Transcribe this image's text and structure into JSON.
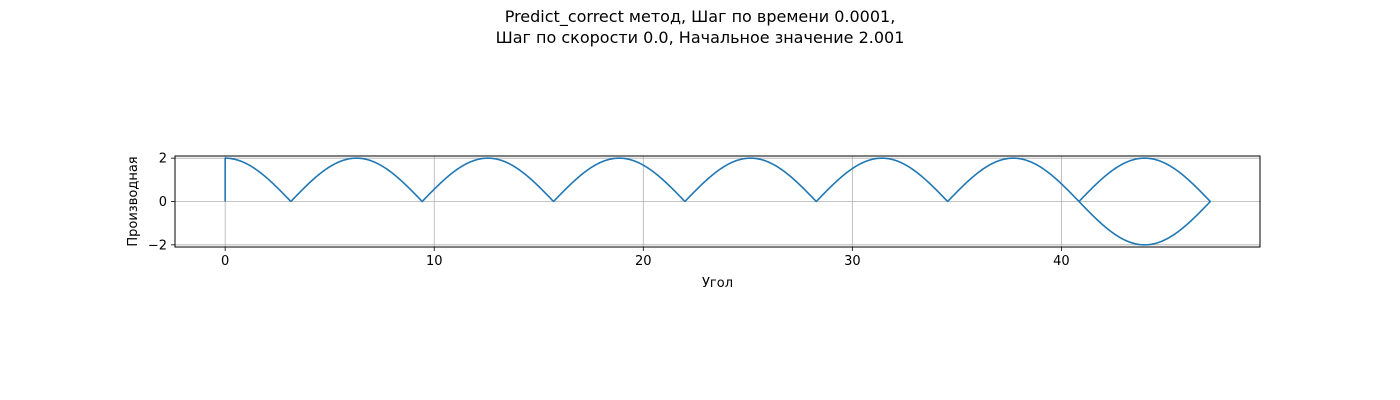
{
  "chart_data": {
    "type": "line",
    "title_line1": "Predict_correct метод, Шаг по времени 0.0001,",
    "title_line2": "Шаг по скорости 0.0, Начальное значение 2.001",
    "xlabel": "Угол",
    "ylabel": "Производная",
    "xlim": [
      -2.4,
      49.5
    ],
    "ylim": [
      -2.1,
      2.1
    ],
    "x_ticks": [
      0,
      10,
      20,
      30,
      40
    ],
    "x_tick_labels": [
      "0",
      "10",
      "20",
      "30",
      "40"
    ],
    "y_ticks": [
      -2,
      0,
      2
    ],
    "y_tick_labels": [
      "−2",
      "0",
      "2"
    ],
    "grid": true,
    "legend": null,
    "series": [
      {
        "color": "#1f77b4",
        "equation": "y = 2·|cos(x/2)| for x in [0, 47.12], then lower branch y = −2·|cos(x/2)| from 40.84 to 47.12",
        "x_max": 47.12,
        "return_branch_start": 40.84,
        "initial_jump": [
          [
            0,
            0
          ],
          [
            0,
            2.001
          ]
        ]
      }
    ]
  }
}
